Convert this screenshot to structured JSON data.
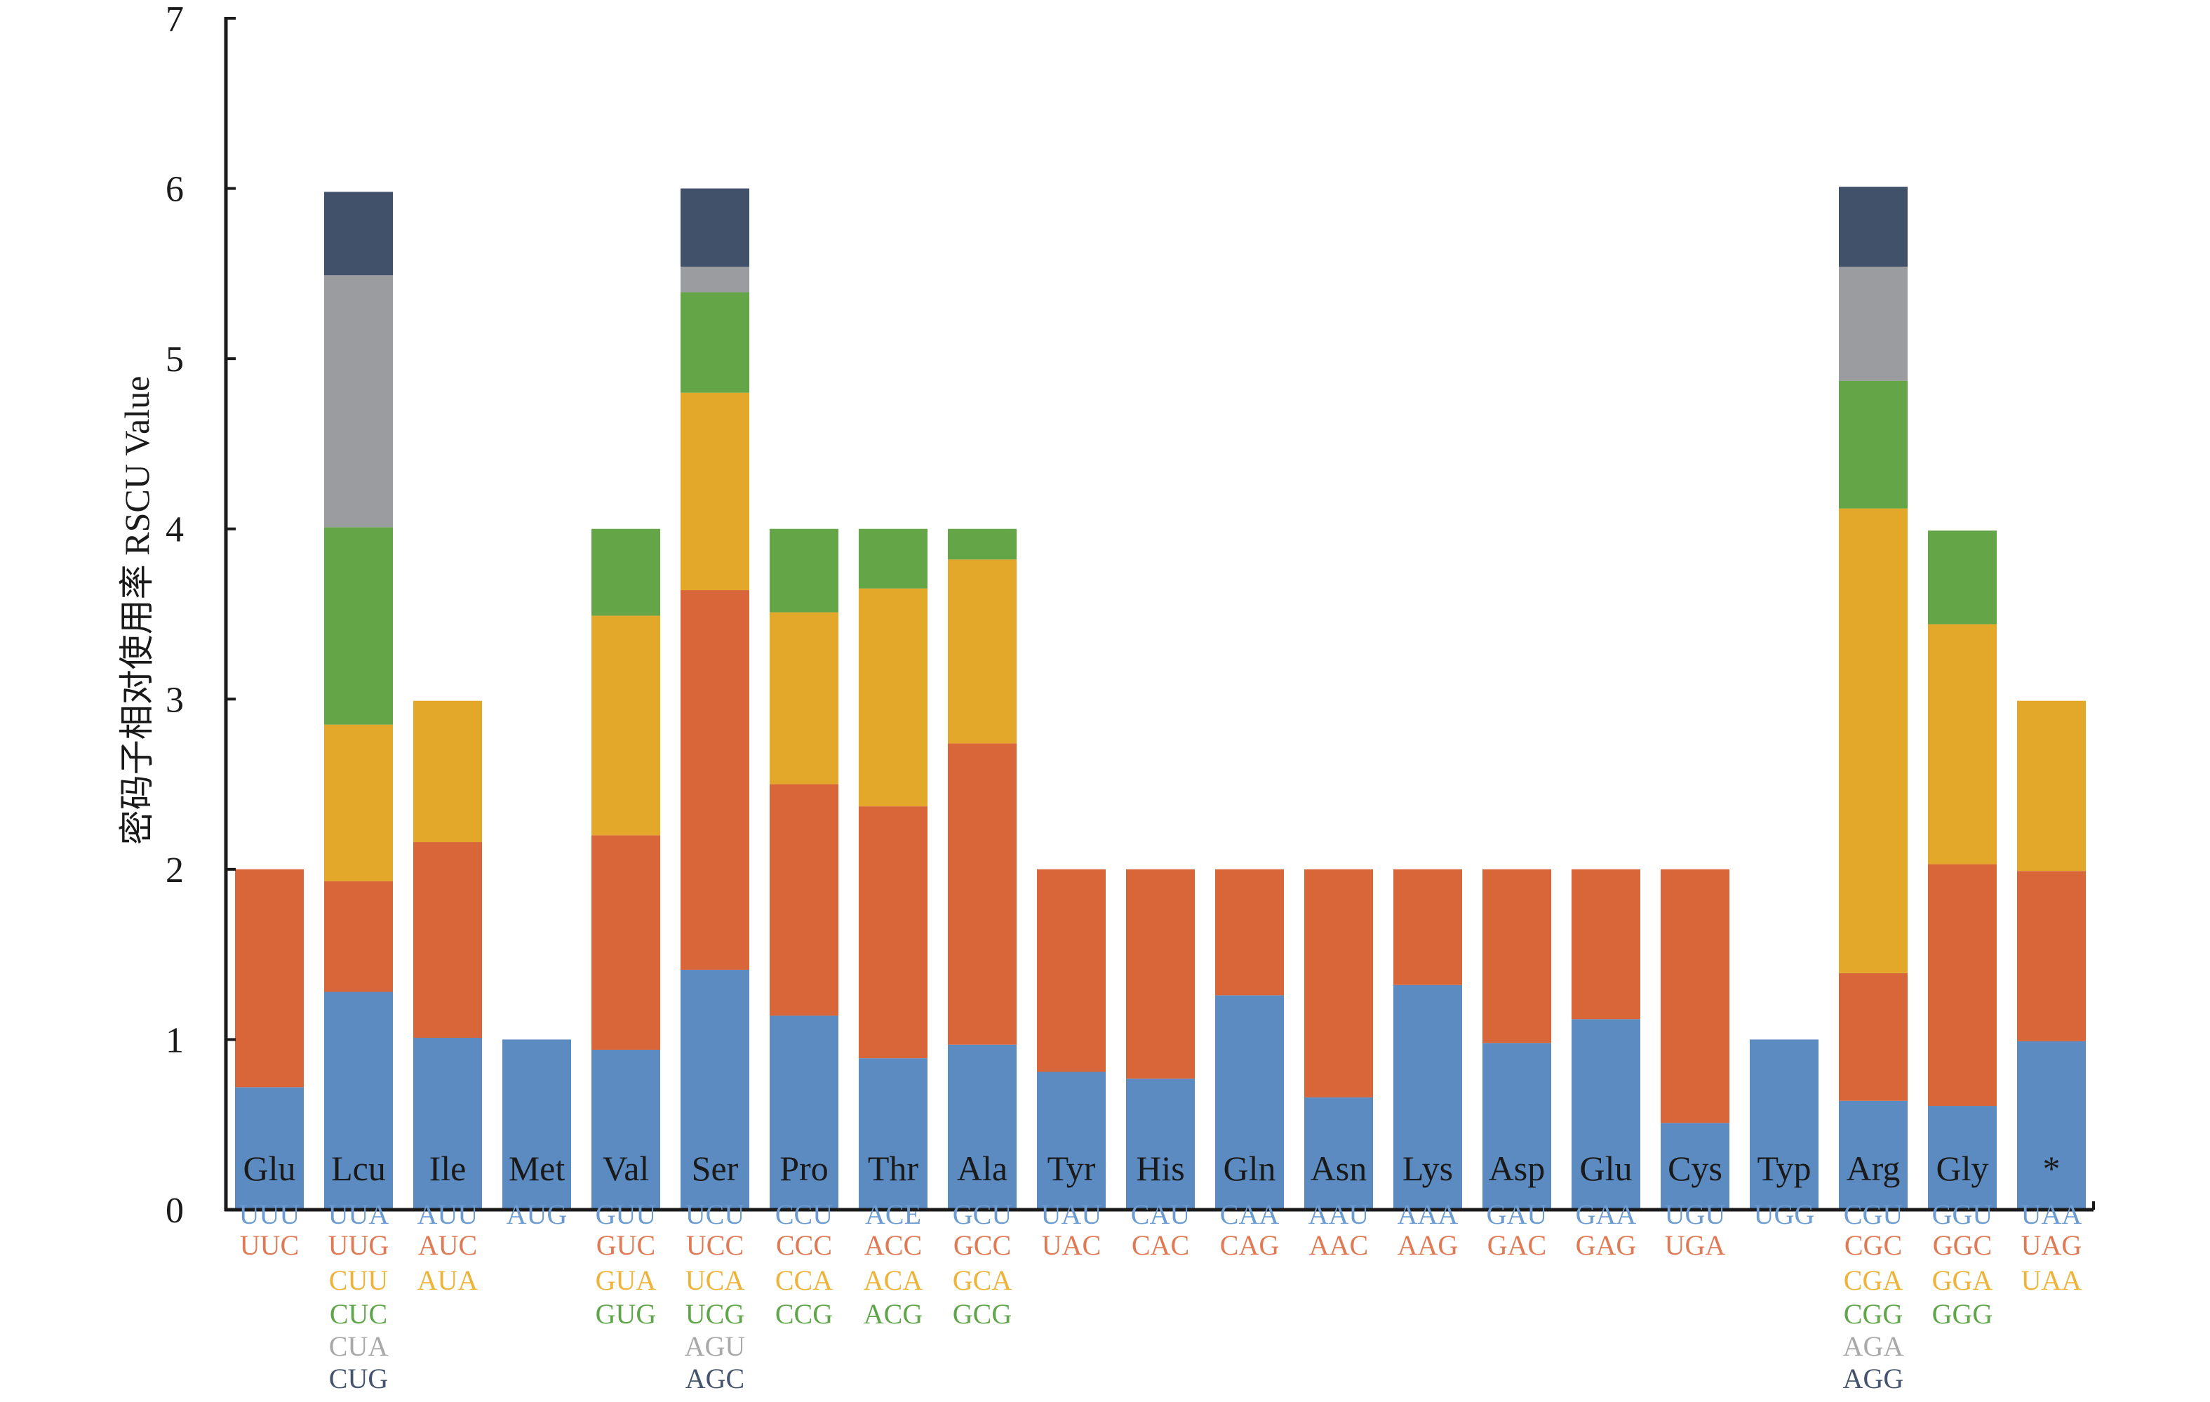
{
  "chart_data": {
    "type": "bar",
    "stacked": true,
    "title": "",
    "xlabel": "",
    "ylabel": "密码子相对使用率 RSCU Value",
    "ylim": [
      0,
      7
    ],
    "yticks": [
      "0",
      "1",
      "2",
      "3",
      "4",
      "5",
      "6",
      "7"
    ],
    "grid": false,
    "legend": "none",
    "segment_colors": [
      "#5b8bc0",
      "#d96638",
      "#e3a82a",
      "#64a548",
      "#9b9c9f",
      "#42516a"
    ],
    "codon_text_colors": [
      "#6b9bd0",
      "#e07a55",
      "#edb33a",
      "#5fa64a",
      "#a9a9a9",
      "#44546e"
    ],
    "categories": [
      "Glu",
      "Lcu",
      "Ile",
      "Met",
      "Val",
      "Ser",
      "Pro",
      "Thr",
      "Ala",
      "Tyr",
      "His",
      "Gln",
      "Asn",
      "Lys",
      "Asp",
      "Glu",
      "Cys",
      "Typ",
      "Arg",
      "Gly",
      "*"
    ],
    "bars": [
      {
        "name": "Glu",
        "codons": [
          "UUU",
          "UUC"
        ],
        "values": [
          0.72,
          1.28
        ]
      },
      {
        "name": "Lcu",
        "codons": [
          "UUA",
          "UUG",
          "CUU",
          "CUC",
          "CUA",
          "CUG"
        ],
        "values": [
          1.28,
          0.65,
          0.92,
          1.16,
          1.48,
          0.49
        ]
      },
      {
        "name": "Ile",
        "codons": [
          "AUU",
          "AUC",
          "AUA"
        ],
        "values": [
          1.01,
          1.15,
          0.83
        ]
      },
      {
        "name": "Met",
        "codons": [
          "AUG"
        ],
        "values": [
          1.0
        ]
      },
      {
        "name": "Val",
        "codons": [
          "GUU",
          "GUC",
          "GUA",
          "GUG"
        ],
        "values": [
          0.94,
          1.26,
          1.29,
          0.51
        ]
      },
      {
        "name": "Ser",
        "codons": [
          "UCU",
          "UCC",
          "UCA",
          "UCG",
          "AGU",
          "AGC"
        ],
        "values": [
          1.41,
          2.23,
          1.16,
          0.59,
          0.15,
          0.46
        ]
      },
      {
        "name": "Pro",
        "codons": [
          "CCU",
          "CCC",
          "CCA",
          "CCG"
        ],
        "values": [
          1.14,
          1.36,
          1.01,
          0.49
        ]
      },
      {
        "name": "Thr",
        "codons": [
          "ACE",
          "ACC",
          "ACA",
          "ACG"
        ],
        "values": [
          0.89,
          1.48,
          1.28,
          0.35
        ]
      },
      {
        "name": "Ala",
        "codons": [
          "GCU",
          "GCC",
          "GCA",
          "GCG"
        ],
        "values": [
          0.97,
          1.77,
          1.08,
          0.18
        ]
      },
      {
        "name": "Tyr",
        "codons": [
          "UAU",
          "UAC"
        ],
        "values": [
          0.81,
          1.19
        ]
      },
      {
        "name": "His",
        "codons": [
          "CAU",
          "CAC"
        ],
        "values": [
          0.77,
          1.23
        ]
      },
      {
        "name": "Gln",
        "codons": [
          "CAA",
          "CAG"
        ],
        "values": [
          1.26,
          0.74
        ]
      },
      {
        "name": "Asn",
        "codons": [
          "AAU",
          "AAC"
        ],
        "values": [
          0.66,
          1.34
        ]
      },
      {
        "name": "Lys",
        "codons": [
          "AAA",
          "AAG"
        ],
        "values": [
          1.32,
          0.68
        ]
      },
      {
        "name": "Asp",
        "codons": [
          "GAU",
          "GAC"
        ],
        "values": [
          0.98,
          1.02
        ]
      },
      {
        "name": "Glu",
        "codons": [
          "GAA",
          "GAG"
        ],
        "values": [
          1.12,
          0.88
        ]
      },
      {
        "name": "Cys",
        "codons": [
          "UGU",
          "UGA"
        ],
        "values": [
          0.51,
          1.49
        ]
      },
      {
        "name": "Typ",
        "codons": [
          "UGG"
        ],
        "values": [
          1.0
        ]
      },
      {
        "name": "Arg",
        "codons": [
          "CGU",
          "CGC",
          "CGA",
          "CGG",
          "AGA",
          "AGG"
        ],
        "values": [
          0.64,
          0.75,
          2.73,
          0.75,
          0.67,
          0.47
        ]
      },
      {
        "name": "Gly",
        "codons": [
          "GGU",
          "GGC",
          "GGA",
          "GGG"
        ],
        "values": [
          0.61,
          1.42,
          1.41,
          0.55
        ]
      },
      {
        "name": "*",
        "codons": [
          "UAA",
          "UAG",
          "UAA"
        ],
        "values": [
          0.99,
          1.0,
          1.0
        ]
      }
    ]
  }
}
